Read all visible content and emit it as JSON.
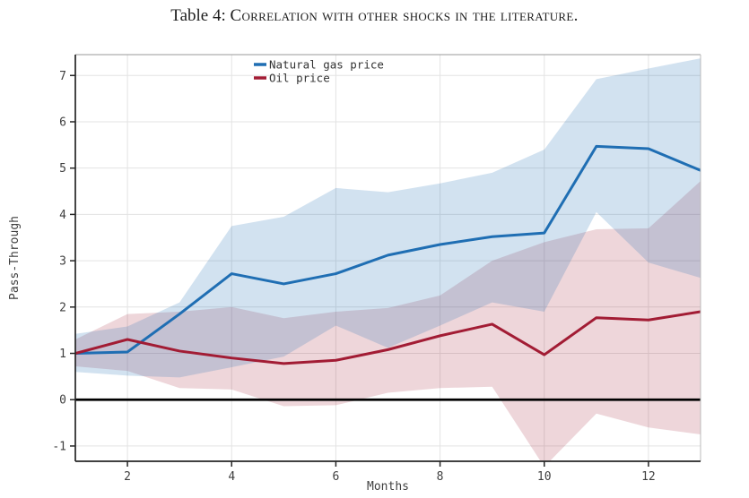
{
  "title": {
    "prefix": "Table 4: ",
    "smallcaps": "Correlation with other shocks in the literature."
  },
  "chart_data": {
    "type": "line",
    "x": [
      1,
      2,
      3,
      4,
      5,
      6,
      7,
      8,
      9,
      10,
      11,
      12,
      13
    ],
    "series": [
      {
        "name": "Natural gas price",
        "color": "#1f6eb3",
        "band_alpha": 0.2,
        "values": [
          1.0,
          1.03,
          1.85,
          2.72,
          2.5,
          2.72,
          3.12,
          3.35,
          3.52,
          3.6,
          5.47,
          5.42,
          4.95
        ],
        "upper": [
          1.42,
          1.58,
          2.1,
          3.75,
          3.95,
          4.57,
          4.48,
          4.67,
          4.9,
          5.4,
          6.92,
          7.15,
          7.37
        ],
        "lower": [
          0.6,
          0.52,
          0.48,
          0.7,
          0.93,
          1.6,
          1.12,
          1.6,
          2.1,
          1.9,
          4.05,
          2.96,
          2.63
        ]
      },
      {
        "name": "Oil price",
        "color": "#a21c34",
        "band_alpha": 0.18,
        "values": [
          1.0,
          1.3,
          1.05,
          0.9,
          0.78,
          0.85,
          1.08,
          1.38,
          1.63,
          0.97,
          1.77,
          1.72,
          1.9
        ],
        "upper": [
          1.3,
          1.85,
          1.9,
          2.0,
          1.76,
          1.9,
          1.98,
          2.25,
          3.0,
          3.4,
          3.68,
          3.7,
          4.72
        ],
        "lower": [
          0.72,
          0.62,
          0.25,
          0.22,
          -0.14,
          -0.12,
          0.15,
          0.25,
          0.28,
          -1.45,
          -0.3,
          -0.6,
          -0.75
        ]
      }
    ],
    "xlabel": "Months",
    "ylabel": "Pass-Through",
    "x_ticks": [
      2,
      4,
      6,
      8,
      10,
      12
    ],
    "y_ticks": [
      -1,
      0,
      1,
      2,
      3,
      4,
      5,
      6,
      7
    ],
    "xlim": [
      1,
      13
    ],
    "ylim": [
      -1.33,
      7.45
    ],
    "grid": true,
    "grid_color": "#e3e3e3",
    "zero_line": true,
    "zero_line_color": "#000000",
    "legend_position": "top-inside-left-of-center",
    "text_color": "#3f3f3f",
    "spine_color": "#262626"
  }
}
